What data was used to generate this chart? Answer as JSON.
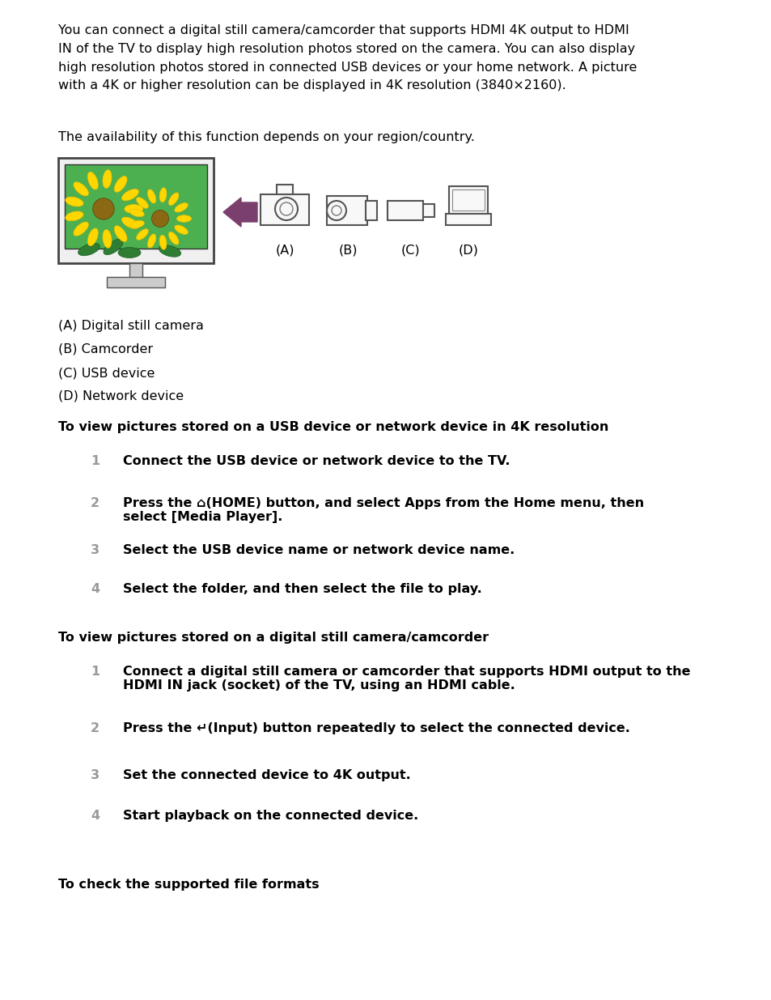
{
  "bg_color": "#ffffff",
  "text_color": "#000000",
  "paragraph1": "You can connect a digital still camera/camcorder that supports HDMI 4K output to HDMI\nIN of the TV to display high resolution photos stored on the camera. You can also display\nhigh resolution photos stored in connected USB devices or your home network. A picture\nwith a 4K or higher resolution can be displayed in 4K resolution (3840×2160).",
  "paragraph2": "The availability of this function depends on your region/country.",
  "device_labels": [
    "(A) Digital still camera",
    "(B) Camcorder",
    "(C) USB device",
    "(D) Network device"
  ],
  "section1_title": "To view pictures stored on a USB device or network device in 4K resolution",
  "section1_steps": [
    "Connect the USB device or network device to the TV.",
    "Press the ⌂(HOME) button, and select Apps from the Home menu, then\nselect [Media Player].",
    "Select the USB device name or network device name.",
    "Select the folder, and then select the file to play."
  ],
  "section2_title": "To view pictures stored on a digital still camera/camcorder",
  "section2_steps": [
    "Connect a digital still camera or camcorder that supports HDMI output to the\nHDMI IN jack (socket) of the TV, using an HDMI cable.",
    "Press the ↵(Input) button repeatedly to select the connected device.",
    "Set the connected device to 4K output.",
    "Start playback on the connected device."
  ],
  "section3_title": "To check the supported file formats",
  "arrow_color": "#7b3f6e",
  "tv_screen_green": "#4caf50",
  "sunflower_yellow": "#ffd700",
  "sunflower_yellow2": "#f0c000",
  "sunflower_center": "#8b6914",
  "leaf_green": "#2e7d32",
  "icon_color": "#555555"
}
